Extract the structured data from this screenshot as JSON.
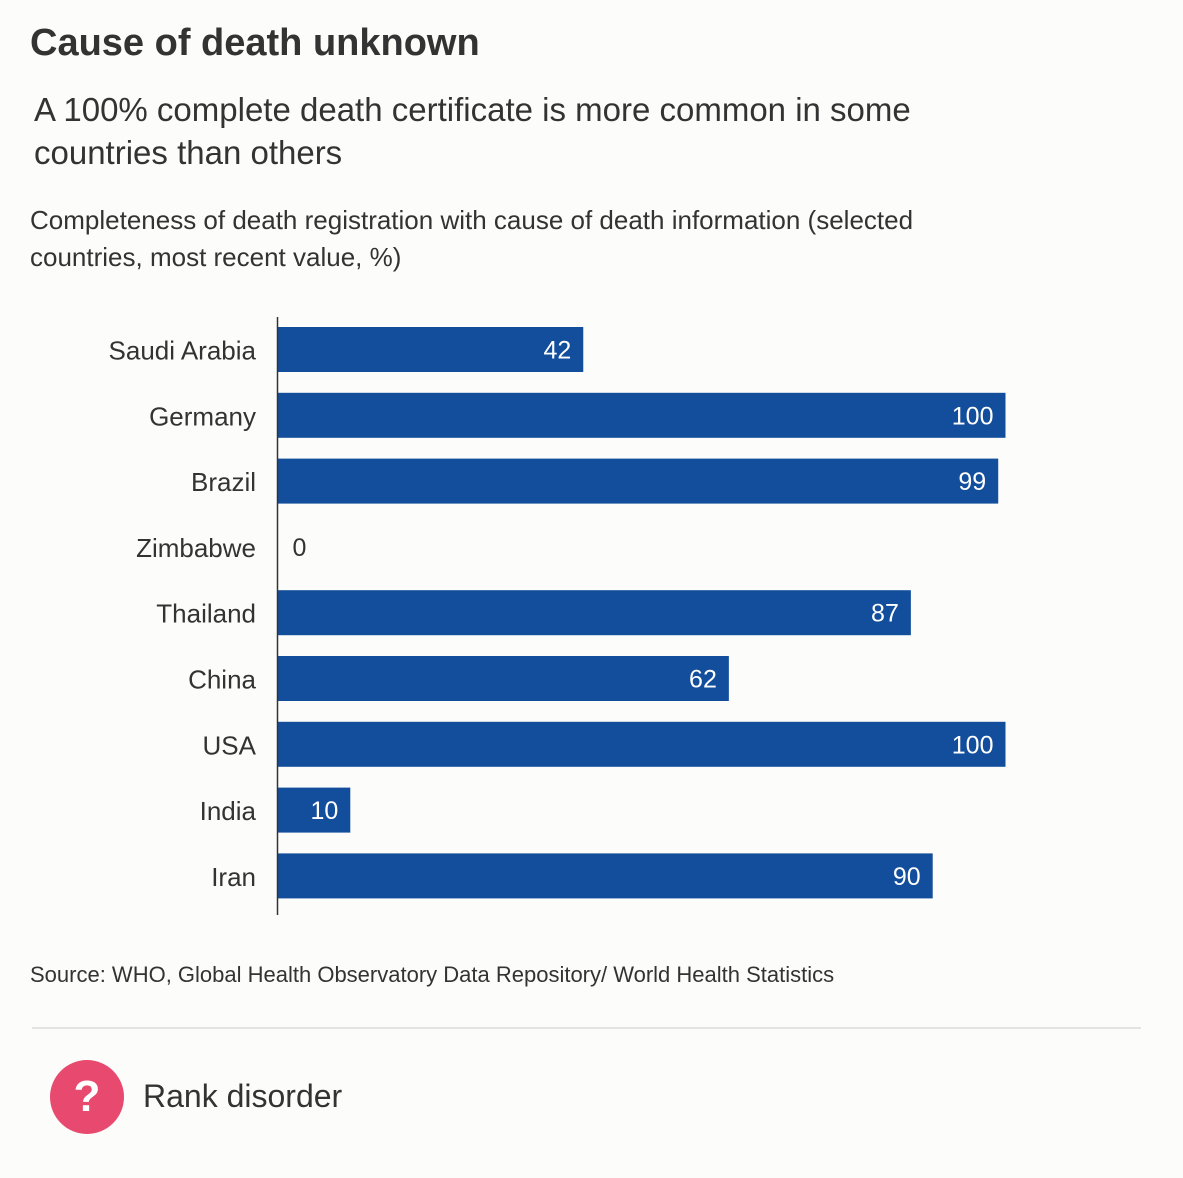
{
  "header": {
    "title": "Cause of death unknown",
    "subtitle": "A 100% complete death certificate is more common in some countries than others",
    "axis_description": "Completeness of death registration with cause of death information (selected countries, most recent value, %)"
  },
  "chart_data": {
    "type": "bar",
    "orientation": "horizontal",
    "title": "Completeness of death registration with cause of death information (selected countries, most recent value, %)",
    "categories": [
      "Saudi Arabia",
      "Germany",
      "Brazil",
      "Zimbabwe",
      "Thailand",
      "China",
      "USA",
      "India",
      "Iran"
    ],
    "values": [
      42,
      100,
      99,
      0,
      87,
      62,
      100,
      10,
      90
    ],
    "xlabel": "",
    "ylabel": "",
    "xlim": [
      0,
      100
    ],
    "grid": false,
    "bar_color": "#134e9c",
    "label_inside_color": "#ffffff",
    "label_outside_color": "#333333"
  },
  "footer": {
    "source": "Source: WHO, Global Health Observatory Data Repository/ World Health Statistics",
    "badge_icon": "question-mark-icon",
    "badge_color": "#e8496e",
    "badge_label": "Rank disorder"
  }
}
